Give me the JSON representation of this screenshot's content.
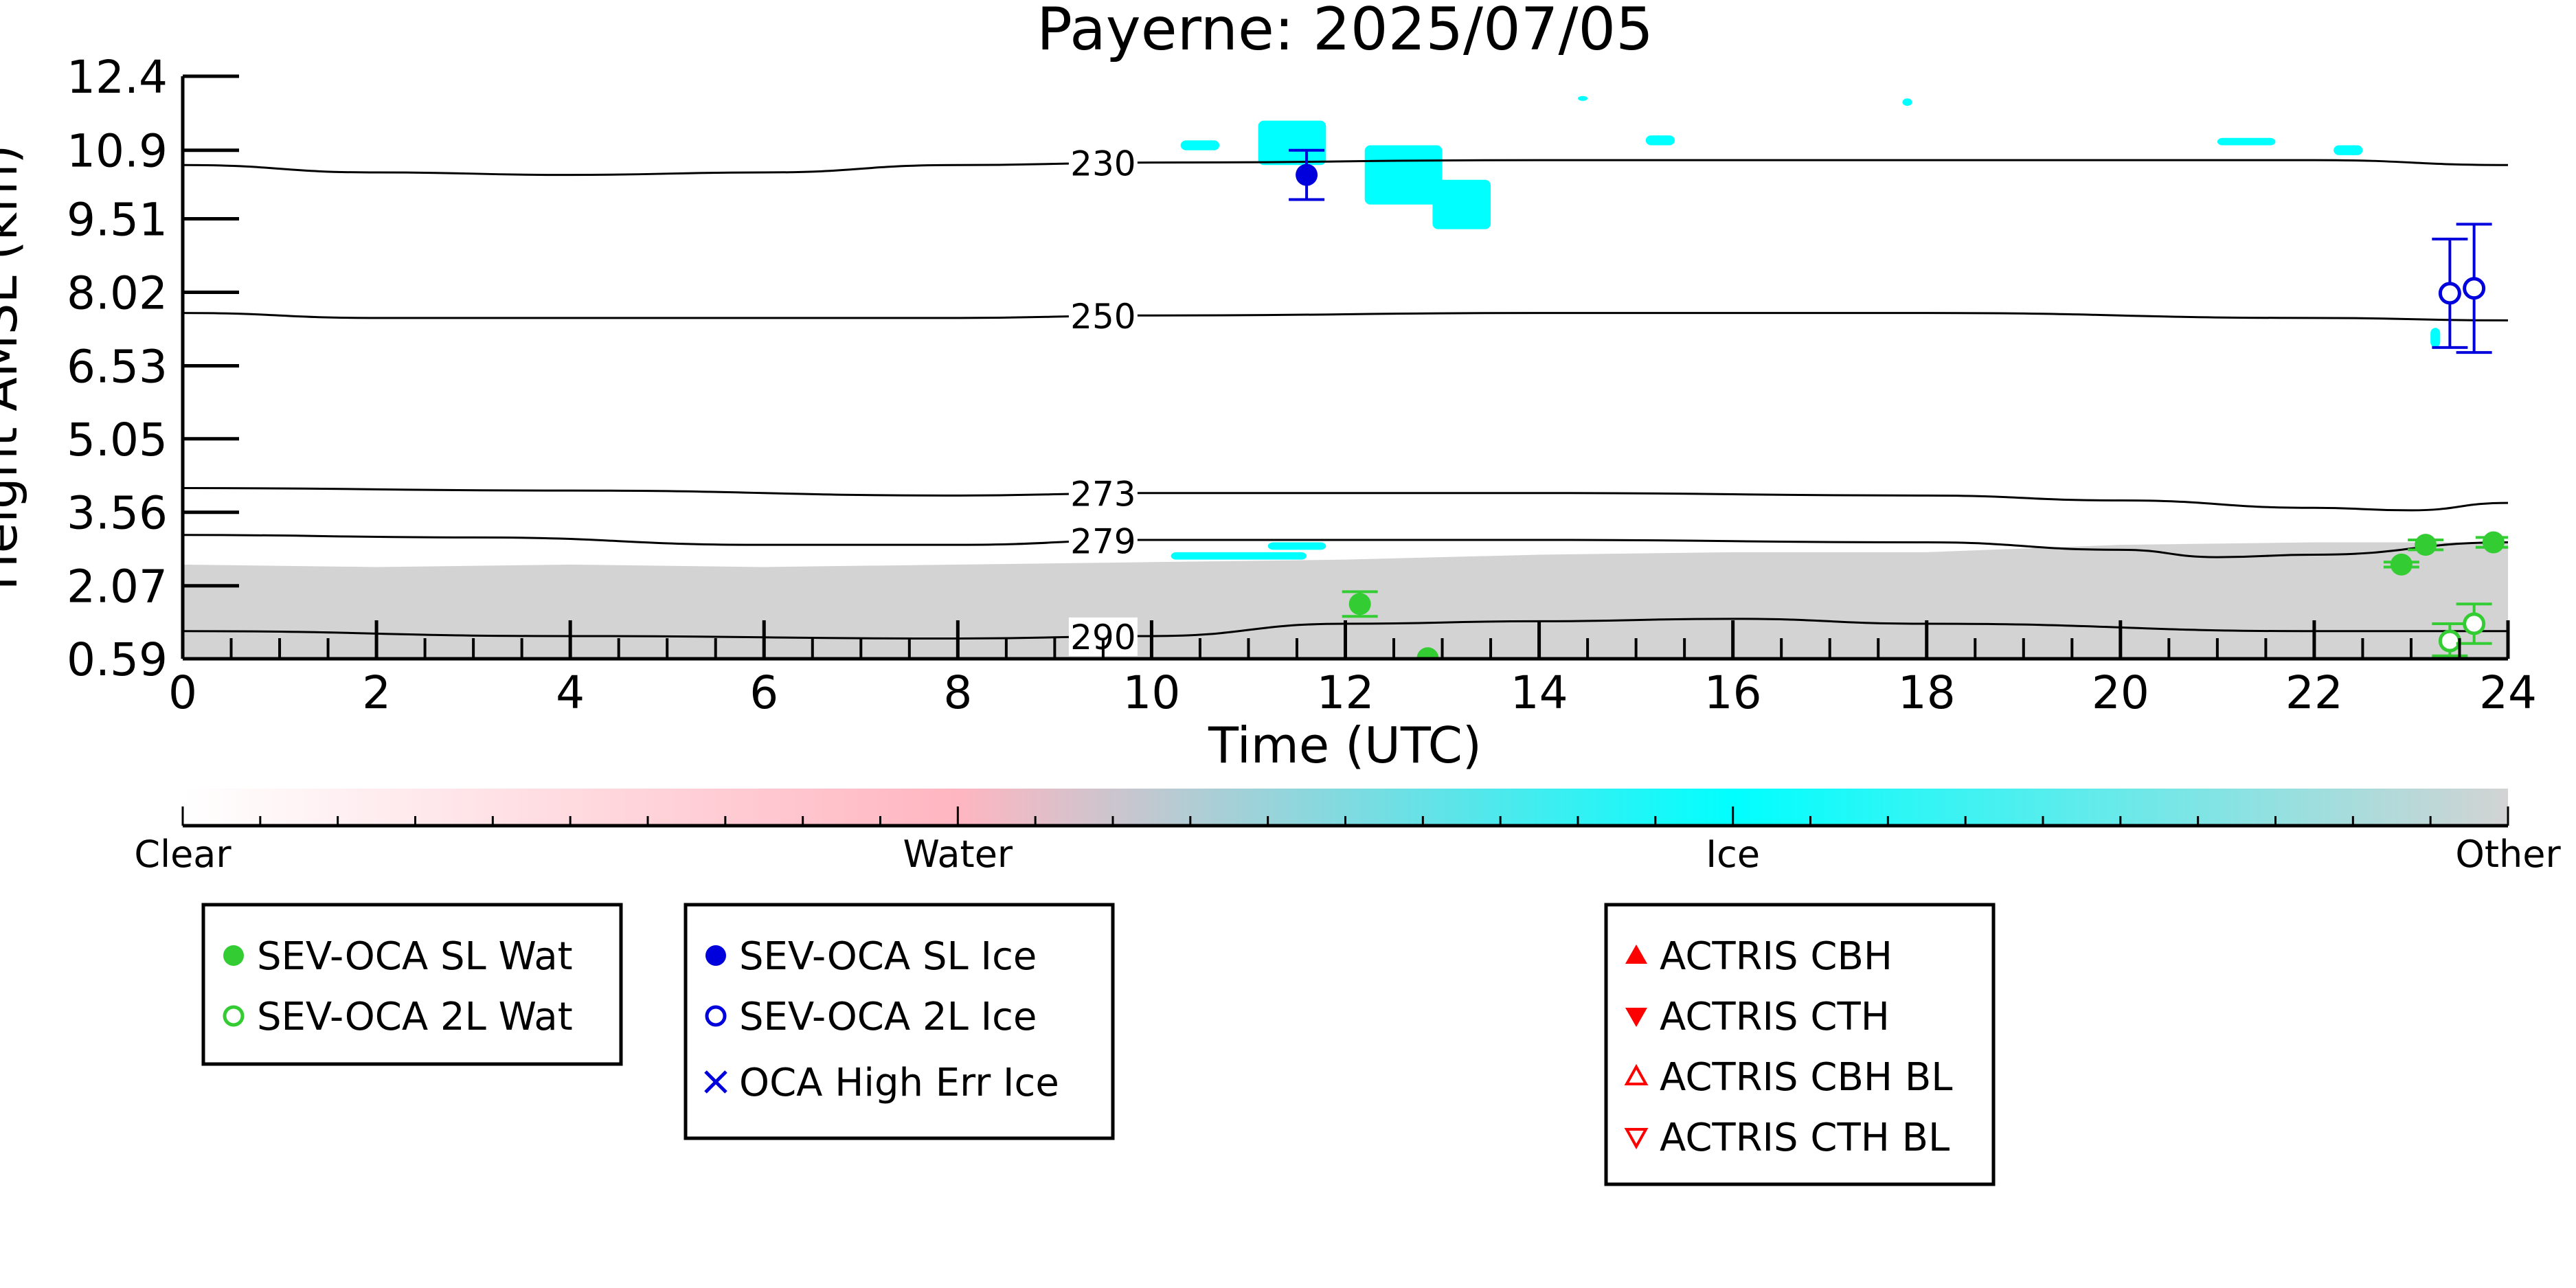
{
  "chart_data": {
    "type": "scatter",
    "title": "Payerne: 2025/07/05",
    "xlabel": "Time (UTC)",
    "ylabel": "Height AMSL (km)",
    "xlim": [
      0,
      24
    ],
    "ylim": [
      0.59,
      12.4
    ],
    "x_ticks": [
      "0",
      "2",
      "4",
      "6",
      "8",
      "10",
      "12",
      "14",
      "16",
      "18",
      "20",
      "22",
      "24"
    ],
    "y_ticks": [
      "0.59",
      "2.07",
      "3.56",
      "5.05",
      "6.53",
      "8.02",
      "9.51",
      "10.9",
      "12.4"
    ],
    "y_tick_values": [
      0.59,
      2.07,
      3.56,
      5.05,
      6.53,
      8.02,
      9.51,
      10.9,
      12.4
    ],
    "grid": false,
    "colorbar": {
      "labels": [
        "Clear",
        "Water",
        "Ice",
        "Other"
      ],
      "colors": [
        "#ffffff",
        "#ffb6c1",
        "#00ffff",
        "#d3d3d3"
      ]
    },
    "temperature_contours": [
      {
        "label": "230",
        "points": [
          [
            0,
            10.6
          ],
          [
            2,
            10.45
          ],
          [
            4,
            10.4
          ],
          [
            6,
            10.45
          ],
          [
            8,
            10.6
          ],
          [
            10,
            10.65
          ],
          [
            14,
            10.7
          ],
          [
            18,
            10.7
          ],
          [
            22,
            10.7
          ],
          [
            24,
            10.6
          ]
        ]
      },
      {
        "label": "250",
        "points": [
          [
            0,
            7.6
          ],
          [
            2,
            7.5
          ],
          [
            4,
            7.5
          ],
          [
            6,
            7.5
          ],
          [
            8,
            7.5
          ],
          [
            10,
            7.55
          ],
          [
            14,
            7.6
          ],
          [
            18,
            7.6
          ],
          [
            22,
            7.5
          ],
          [
            24,
            7.45
          ]
        ]
      },
      {
        "label": "273",
        "points": [
          [
            0,
            4.05
          ],
          [
            4,
            4.0
          ],
          [
            8,
            3.9
          ],
          [
            10,
            3.95
          ],
          [
            14,
            3.95
          ],
          [
            18,
            3.9
          ],
          [
            20,
            3.8
          ],
          [
            22,
            3.65
          ],
          [
            23,
            3.6
          ],
          [
            24,
            3.75
          ]
        ]
      },
      {
        "label": "279",
        "points": [
          [
            0,
            3.1
          ],
          [
            3,
            3.05
          ],
          [
            6,
            2.9
          ],
          [
            8,
            2.9
          ],
          [
            10,
            3.0
          ],
          [
            14,
            3.0
          ],
          [
            18,
            2.95
          ],
          [
            20,
            2.8
          ],
          [
            21,
            2.65
          ],
          [
            22,
            2.7
          ],
          [
            24,
            2.95
          ]
        ]
      },
      {
        "label": "290",
        "points": [
          [
            0,
            1.15
          ],
          [
            4,
            1.05
          ],
          [
            8,
            1.0
          ],
          [
            10,
            1.05
          ],
          [
            12,
            1.3
          ],
          [
            14,
            1.35
          ],
          [
            16,
            1.4
          ],
          [
            18,
            1.3
          ],
          [
            22,
            1.15
          ],
          [
            24,
            1.15
          ]
        ]
      }
    ],
    "series": [
      {
        "name": "SEV-OCA SL Wat",
        "color": "#33cc33",
        "marker": "filled-circle",
        "points": [
          [
            12.15,
            1.7
          ],
          [
            12.85,
            0.6
          ],
          [
            22.9,
            2.5
          ],
          [
            23.15,
            2.9
          ],
          [
            23.85,
            2.95
          ]
        ],
        "err": [
          [
            0.25,
            0.25
          ],
          [
            0,
            0
          ],
          [
            0.05,
            0.05
          ],
          [
            0.1,
            0.1
          ],
          [
            0.1,
            0.1
          ]
        ]
      },
      {
        "name": "SEV-OCA 2L Wat",
        "color": "#33cc33",
        "marker": "open-circle",
        "points": [
          [
            23.4,
            0.95
          ],
          [
            23.65,
            1.3
          ]
        ],
        "err": [
          [
            0.3,
            0.35
          ],
          [
            0.4,
            0.4
          ]
        ]
      },
      {
        "name": "SEV-OCA SL Ice",
        "color": "#0000dd",
        "marker": "filled-circle",
        "points": [
          [
            11.6,
            10.4
          ]
        ],
        "err": [
          [
            0.5,
            0.5
          ]
        ]
      },
      {
        "name": "SEV-OCA 2L Ice",
        "color": "#0000dd",
        "marker": "open-circle",
        "points": [
          [
            23.4,
            8.0
          ],
          [
            23.65,
            8.1
          ]
        ],
        "err": [
          [
            1.1,
            1.1
          ],
          [
            1.3,
            1.3
          ]
        ]
      },
      {
        "name": "OCA High Err Ice",
        "color": "#0000dd",
        "marker": "x",
        "points": []
      },
      {
        "name": "ACTRIS CBH",
        "color": "#ff0000",
        "marker": "filled-triangle-up",
        "points": []
      },
      {
        "name": "ACTRIS CTH",
        "color": "#ff0000",
        "marker": "filled-triangle-down",
        "points": []
      },
      {
        "name": "ACTRIS CBH BL",
        "color": "#ff0000",
        "marker": "open-triangle-up",
        "points": []
      },
      {
        "name": "ACTRIS CTH BL",
        "color": "#ff0000",
        "marker": "open-triangle-down",
        "points": []
      }
    ],
    "legends": [
      [
        "SEV-OCA SL Wat",
        "SEV-OCA 2L Wat"
      ],
      [
        "SEV-OCA SL Ice",
        "SEV-OCA 2L Ice",
        "OCA High Err Ice"
      ],
      [
        "ACTRIS CBH",
        "ACTRIS CTH",
        "ACTRIS CBH BL",
        "ACTRIS CTH BL"
      ]
    ],
    "cloud_classification": {
      "other_layer": {
        "x_range": [
          0,
          24
        ],
        "bottom": 0.59,
        "top_profile": [
          [
            0,
            2.5
          ],
          [
            2,
            2.45
          ],
          [
            4,
            2.5
          ],
          [
            6,
            2.45
          ],
          [
            8,
            2.5
          ],
          [
            10,
            2.55
          ],
          [
            12,
            2.6
          ],
          [
            14,
            2.7
          ],
          [
            16,
            2.75
          ],
          [
            18,
            2.75
          ],
          [
            20,
            2.9
          ],
          [
            22,
            2.95
          ],
          [
            24,
            2.95
          ]
        ]
      },
      "ice_patches": [
        {
          "x": [
            10.3,
            10.7
          ],
          "y": [
            10.9,
            11.1
          ]
        },
        {
          "x": [
            11.1,
            11.8
          ],
          "y": [
            10.6,
            11.5
          ]
        },
        {
          "x": [
            12.2,
            13.0
          ],
          "y": [
            9.8,
            11.0
          ]
        },
        {
          "x": [
            12.9,
            13.5
          ],
          "y": [
            9.3,
            10.3
          ]
        },
        {
          "x": [
            14.4,
            14.5
          ],
          "y": [
            11.9,
            12.0
          ]
        },
        {
          "x": [
            15.1,
            15.4
          ],
          "y": [
            11.0,
            11.2
          ]
        },
        {
          "x": [
            17.75,
            17.85
          ],
          "y": [
            11.8,
            11.95
          ]
        },
        {
          "x": [
            21.0,
            21.6
          ],
          "y": [
            11.0,
            11.15
          ]
        },
        {
          "x": [
            22.2,
            22.5
          ],
          "y": [
            10.8,
            11.0
          ]
        },
        {
          "x": [
            23.2,
            23.3
          ],
          "y": [
            6.9,
            7.3
          ]
        },
        {
          "x": [
            10.2,
            11.6
          ],
          "y": [
            2.6,
            2.75
          ]
        },
        {
          "x": [
            11.2,
            11.8
          ],
          "y": [
            2.8,
            2.95
          ]
        }
      ]
    }
  }
}
